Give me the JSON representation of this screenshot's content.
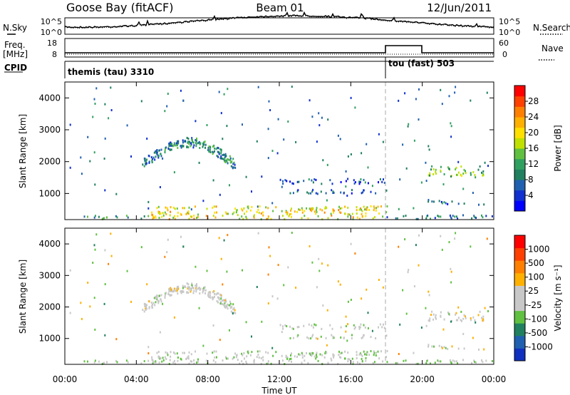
{
  "header": {
    "station": "Goose Bay (fitACF)",
    "beam": "Beam 01",
    "date": "12/Jun/2011"
  },
  "noise_panel": {
    "left_label": "N.Sky",
    "left_ticks": [
      "10^5",
      "10^0"
    ],
    "right_ticks": [
      "10^5",
      "10^0"
    ],
    "right_label": "N.Search",
    "series": [
      {
        "name": "N.Sky",
        "style": "solid"
      },
      {
        "name": "N.Search",
        "style": "dotted"
      }
    ]
  },
  "freq_panel": {
    "left_label_1": "Freq.",
    "left_label_2": "[MHz]",
    "left_ticks": [
      "18",
      "8"
    ],
    "right_ticks": [
      "60",
      "0"
    ],
    "right_label": "Nave",
    "series": [
      {
        "name": "Freq",
        "style": "solid"
      },
      {
        "name": "Nave",
        "style": "dotted"
      }
    ]
  },
  "cpid_panel": {
    "label": "CPID",
    "modes": [
      {
        "text": "themis (tau) 3310",
        "start_hour": 0.0
      },
      {
        "text": "tou (fast) 503",
        "start_hour": 18.0
      }
    ]
  },
  "x_axis": {
    "title": "Time UT",
    "range_hours": [
      0,
      24
    ],
    "ticks": [
      "00:00",
      "04:00",
      "08:00",
      "12:00",
      "16:00",
      "20:00",
      "00:00"
    ]
  },
  "power_panel": {
    "ylabel": "Slant Range [km]",
    "yticks": [
      "4000",
      "3000",
      "2000",
      "1000"
    ],
    "colorbar_label": "Power [dB]",
    "colorbar_ticks": [
      "28",
      "24",
      "20",
      "16",
      "12",
      "8",
      "4"
    ],
    "colors": [
      "#0000ff",
      "#1030d0",
      "#2060b0",
      "#208060",
      "#30a060",
      "#60c040",
      "#c0e000",
      "#ffe000",
      "#ffb000",
      "#ff8000",
      "#ff4000",
      "#ff0000"
    ]
  },
  "velocity_panel": {
    "ylabel": "Slant Range [km]",
    "yticks": [
      "4000",
      "3000",
      "2000",
      "1000"
    ],
    "colorbar_label": "Velocity [m s⁻¹]",
    "colorbar_ticks": [
      "1000",
      "500",
      "100",
      "25",
      "-25",
      "-100",
      "-500",
      "-1000"
    ],
    "colors": [
      "#1030c0",
      "#2060b0",
      "#208060",
      "#60c040",
      "#c8c8c8",
      "#c8c8c8",
      "#ffb000",
      "#ff8000",
      "#ff4000",
      "#ff0000"
    ]
  },
  "chart_data": {
    "type": "heatmap",
    "x_range_hours": [
      0,
      24
    ],
    "y_range_km": [
      180,
      4500
    ],
    "mode_change_hour": 18.0,
    "regions": [
      {
        "name": "near-range band",
        "t0": 4.8,
        "t1": 18.0,
        "r0": 190,
        "r1": 600,
        "power": 18,
        "velocity": 15
      },
      {
        "name": "near-range band early",
        "t0": 1.0,
        "t1": 4.8,
        "r0": 190,
        "r1": 300,
        "power": 10,
        "velocity": 20
      },
      {
        "name": "near-range band late",
        "t0": 18.0,
        "t1": 24.0,
        "r0": 190,
        "r1": 320,
        "power": 8,
        "velocity": 20
      },
      {
        "name": "morning arc",
        "t0": 4.3,
        "t1": 9.5,
        "r0": 1750,
        "r1": 2700,
        "power": 9,
        "velocity": 0
      },
      {
        "name": "evening patch",
        "t0": 20.0,
        "t1": 23.5,
        "r0": 1550,
        "r1": 1850,
        "power": 13,
        "velocity": 0
      },
      {
        "name": "band 1400 km",
        "t0": 12.0,
        "t1": 18.0,
        "r0": 1300,
        "r1": 1450,
        "power": 6,
        "velocity": 10
      },
      {
        "name": "band 1050 km",
        "t0": 12.2,
        "t1": 18.0,
        "r0": 1000,
        "r1": 1120,
        "power": 6,
        "velocity": 10
      },
      {
        "name": "band 700 km",
        "t0": 20.0,
        "t1": 21.5,
        "r0": 650,
        "r1": 800,
        "power": 6,
        "velocity": 10
      }
    ]
  }
}
